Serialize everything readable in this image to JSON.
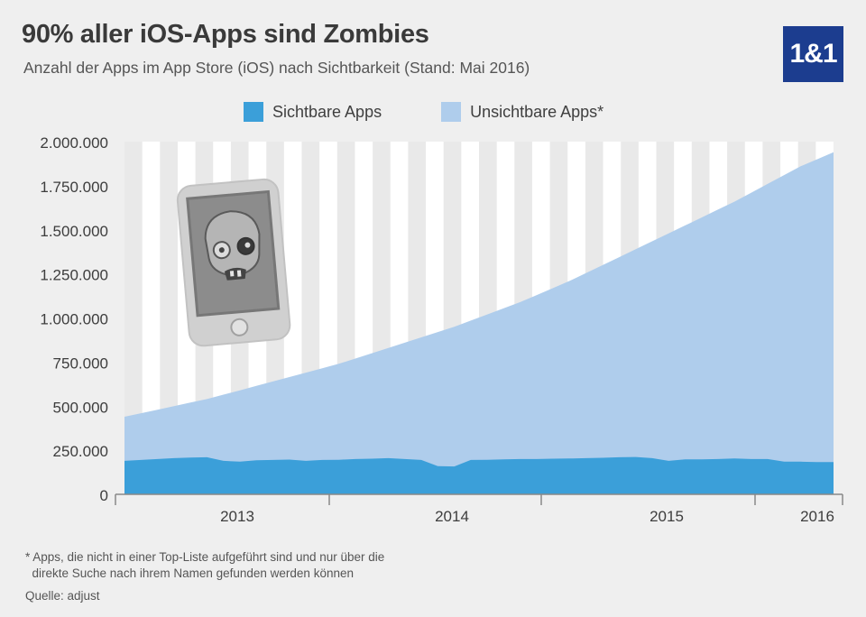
{
  "header": {
    "title": "90% aller iOS-Apps sind Zombies",
    "subtitle": "Anzahl der Apps im App Store (iOS) nach Sichtbarkeit (Stand: Mai 2016)",
    "logo_text": "1&1"
  },
  "colors": {
    "visible": "#3b9fd9",
    "invisible": "#afcdec",
    "logo": "#1c3d8f"
  },
  "footnote": "* Apps, die nicht in einer Top-Liste aufgeführt sind und nur über die\n  direkte Suche nach ihrem Namen gefunden werden können",
  "source": "Quelle: adjust",
  "chart_data": {
    "type": "area",
    "stacked": false,
    "x_labels": [
      "2013",
      "2014",
      "2015",
      "2016"
    ],
    "y_ticks": [
      "2.000.000",
      "1.750.000",
      "1.500.000",
      "1.250.000",
      "1.000.000",
      "750.000",
      "500.000",
      "250.000",
      "0"
    ],
    "ylim": [
      0,
      2000000
    ],
    "grid": "vertical stripes",
    "legend_position": "top",
    "illustration": "zombie-phone-icon",
    "series": [
      {
        "name": "Sichtbare Apps",
        "color": "#3b9fd9",
        "values": [
          190000,
          195000,
          200000,
          205000,
          208000,
          210000,
          190000,
          185000,
          193000,
          195000,
          197000,
          190000,
          195000,
          196000,
          200000,
          202000,
          205000,
          200000,
          195000,
          160000,
          158000,
          195000,
          196000,
          198000,
          200000,
          200000,
          202000,
          203000,
          205000,
          207000,
          210000,
          212000,
          205000,
          190000,
          198000,
          198000,
          200000,
          203000,
          200000,
          200000,
          185000,
          185000,
          183000,
          183000
        ]
      },
      {
        "name": "Unsichtbare Apps*",
        "color": "#afcdec",
        "values": [
          440000,
          460000,
          480000,
          500000,
          520000,
          540000,
          565000,
          590000,
          615000,
          640000,
          665000,
          690000,
          715000,
          740000,
          770000,
          800000,
          830000,
          860000,
          890000,
          920000,
          950000,
          985000,
          1020000,
          1055000,
          1090000,
          1130000,
          1170000,
          1210000,
          1255000,
          1300000,
          1345000,
          1390000,
          1435000,
          1480000,
          1525000,
          1570000,
          1615000,
          1660000,
          1710000,
          1760000,
          1810000,
          1860000,
          1900000,
          1940000
        ]
      }
    ]
  }
}
